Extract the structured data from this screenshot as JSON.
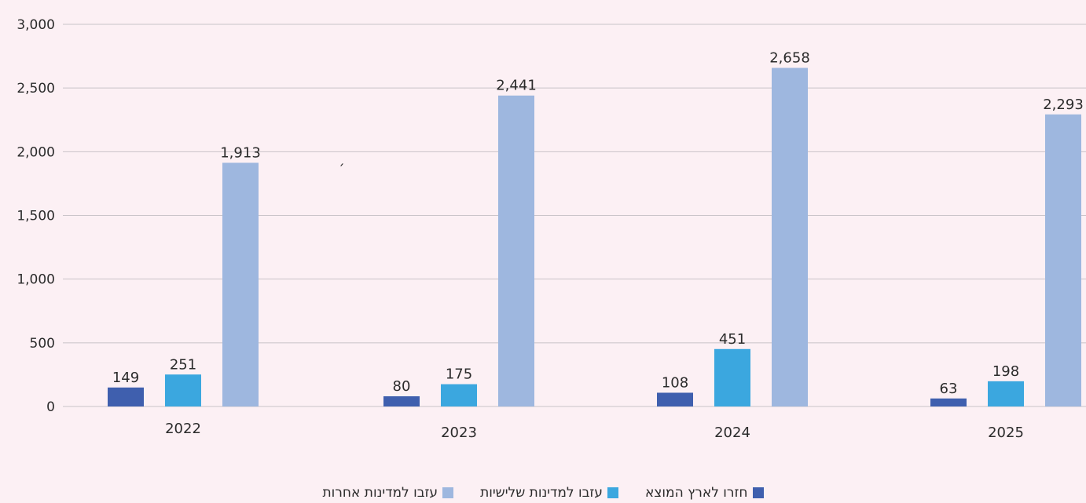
{
  "chart_data": {
    "type": "bar",
    "title": "",
    "xlabel": "",
    "ylabel": "",
    "ylim": [
      0,
      3000
    ],
    "yticks": [
      0,
      500,
      1000,
      1500,
      2000,
      2500,
      3000
    ],
    "ytick_labels": [
      "0",
      "500",
      "1,000",
      "1,500",
      "2,000",
      "2,500",
      "3,000"
    ],
    "grid": true,
    "legend_position": "bottom",
    "categories": [
      "2022",
      "2023",
      "2024",
      "2025"
    ],
    "series": [
      {
        "name": "חזרו לארץ המוצא",
        "color": "#3f5fae",
        "values": [
          149,
          80,
          108,
          63
        ],
        "labels": [
          "149",
          "80",
          "108",
          "63"
        ]
      },
      {
        "name": "עזבו למדינות שלישיות",
        "color": "#3ba7df",
        "values": [
          251,
          175,
          451,
          198
        ],
        "labels": [
          "251",
          "175",
          "451",
          "198"
        ]
      },
      {
        "name": "עזבו למדינות אחרות",
        "color": "#9eb7df",
        "values": [
          1913,
          2441,
          2658,
          2293
        ],
        "labels": [
          "1,913",
          "2,441",
          "2,658",
          "2,293"
        ]
      }
    ],
    "annotations": [
      "׳"
    ]
  }
}
